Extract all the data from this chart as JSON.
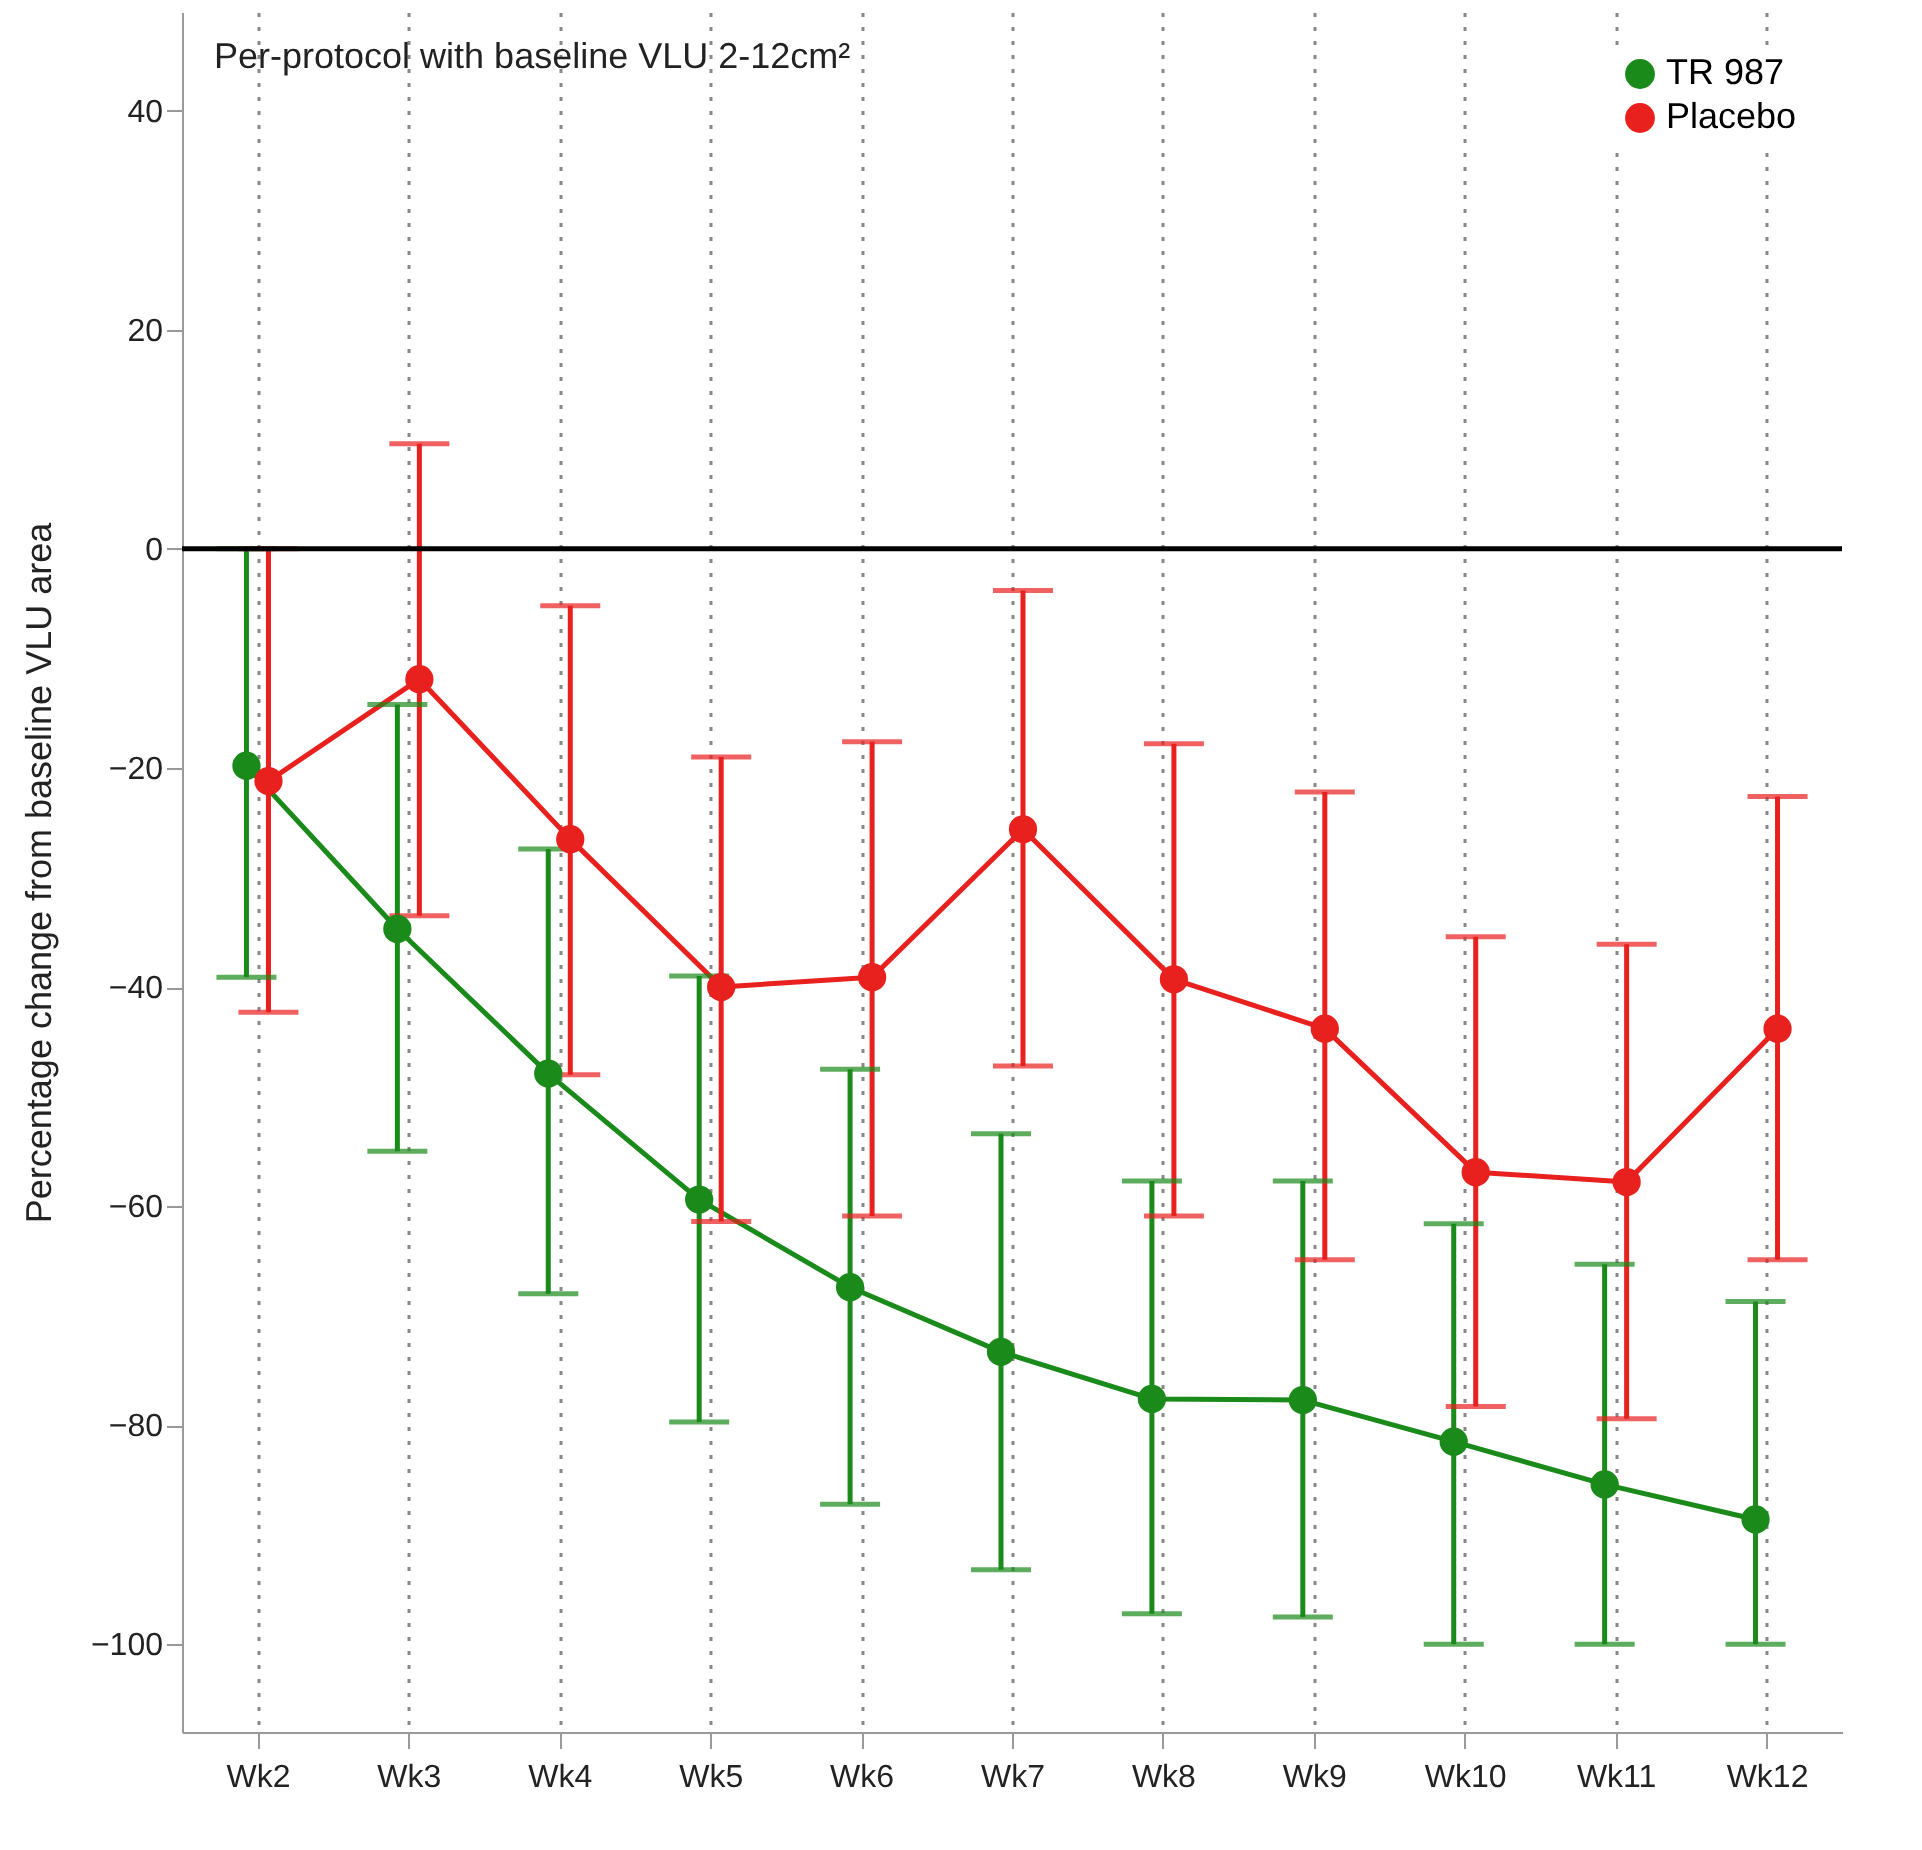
{
  "chart_data": {
    "type": "line",
    "ylabel": "Percentage change from baseline VLU area",
    "annotations": [
      "Per-protocol with baseline VLU 2-12cm²"
    ],
    "categories": [
      "Wk2",
      "Wk3",
      "Wk4",
      "Wk5",
      "Wk6",
      "Wk7",
      "Wk8",
      "Wk9",
      "Wk10",
      "Wk11",
      "Wk12"
    ],
    "series": [
      {
        "name": "TR 987",
        "color": "#1a8a1a",
        "values": [
          -19.8,
          -34.7,
          -47.9,
          -59.4,
          -67.4,
          -73.3,
          -77.6,
          -77.7,
          -81.5,
          -85.4,
          -88.6
        ],
        "errors": [
          [
            -39.1,
            0
          ],
          [
            -55.0,
            -14.2
          ],
          [
            -68.0,
            -27.4
          ],
          [
            -79.7,
            -39.0
          ],
          [
            -87.2,
            -47.5
          ],
          [
            -93.2,
            -53.4
          ],
          [
            -97.2,
            -57.7
          ],
          [
            -97.5,
            -57.7
          ],
          [
            -100,
            -61.6
          ],
          [
            -100,
            -65.3
          ],
          [
            -100,
            -68.7
          ]
        ]
      },
      {
        "name": "Placebo",
        "color": "#e8201e",
        "values": [
          -21.2,
          -11.9,
          -26.5,
          -40.0,
          -39.1,
          -25.6,
          -39.3,
          -43.8,
          -56.9,
          -57.8,
          -43.8
        ],
        "errors": [
          [
            -42.3,
            0
          ],
          [
            -33.5,
            9.6
          ],
          [
            -48.0,
            -5.2
          ],
          [
            -61.4,
            -19.0
          ],
          [
            -60.9,
            -17.6
          ],
          [
            -47.2,
            -3.8
          ],
          [
            -60.9,
            -17.8
          ],
          [
            -64.9,
            -22.2
          ],
          [
            -78.3,
            -35.4
          ],
          [
            -79.4,
            -36.1
          ],
          [
            -64.9,
            -22.6
          ]
        ]
      }
    ],
    "ylim": [
      -108,
      49
    ],
    "yticks": [
      -100,
      -80,
      -60,
      -40,
      -20,
      0,
      20,
      40
    ],
    "ref_lines": [
      {
        "axis": "y",
        "value": 0,
        "color": "#000000"
      }
    ],
    "grid": "x",
    "legend": "top right",
    "marker": "circle",
    "line_style": "solid"
  }
}
